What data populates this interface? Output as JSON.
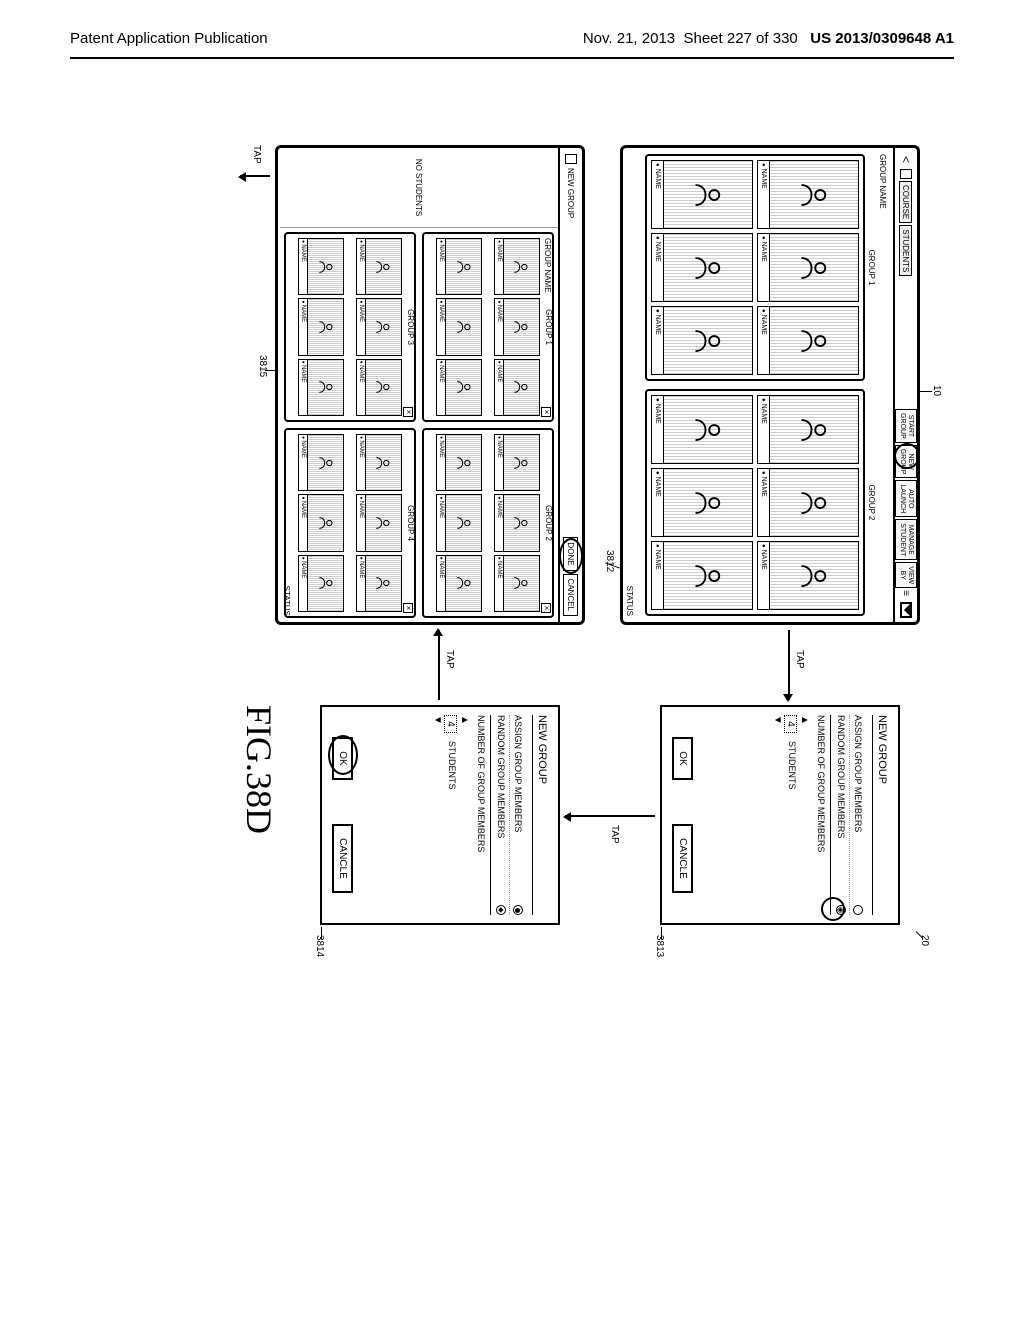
{
  "header": {
    "left": "Patent Application Publication",
    "date": "Nov. 21, 2013",
    "sheet": "Sheet 227 of 330",
    "docnum": "US 2013/0309648 A1"
  },
  "figure_label": "FIG.38D",
  "refs": {
    "r10": "10",
    "r20": "20",
    "r3812": "3812",
    "r3813": "3813",
    "r3814": "3814",
    "r3815": "3815"
  },
  "taps": {
    "t1": "TAP",
    "t2": "TAP",
    "t3": "TAP",
    "t4": "TAP"
  },
  "screenA": {
    "back": "<",
    "crumb1": "COURSE",
    "crumb2": "STUDENTS",
    "btn_start": "START\nGROUP",
    "btn_new": "NEW\nGROUP",
    "btn_auto": "AUTO\nLAUNCH",
    "btn_manage": "MANAGE\nSTUDENT",
    "btn_view": "VIEW\nBY",
    "bulls": "≡",
    "group_name": "GROUP NAME",
    "g1": "GROUP 1",
    "g2": "GROUP 2",
    "student_name": "NAME",
    "status": "STATUS"
  },
  "screenB": {
    "newgroup": "NEW GROUP",
    "done": "DONE",
    "cancel": "CANCEL",
    "no_students": "NO STUDENTS",
    "group_name": "GROUP NAME",
    "g1": "GROUP 1",
    "g2": "GROUP 2",
    "g3": "GROUP 3",
    "g4": "GROUP 4",
    "student_name": "NAME",
    "status": "STATUS"
  },
  "dialog": {
    "title": "NEW GROUP",
    "assign": "ASSIGN GROUP MEMBERS",
    "random": "RANDOM GROUP MEMBERS",
    "numof": "NUMBER OF GROUP MEMBERS",
    "up": "▲",
    "down": "▼",
    "num": "4",
    "students": "STUDENTS",
    "ok": "OK",
    "cancel": "CANCLE"
  }
}
